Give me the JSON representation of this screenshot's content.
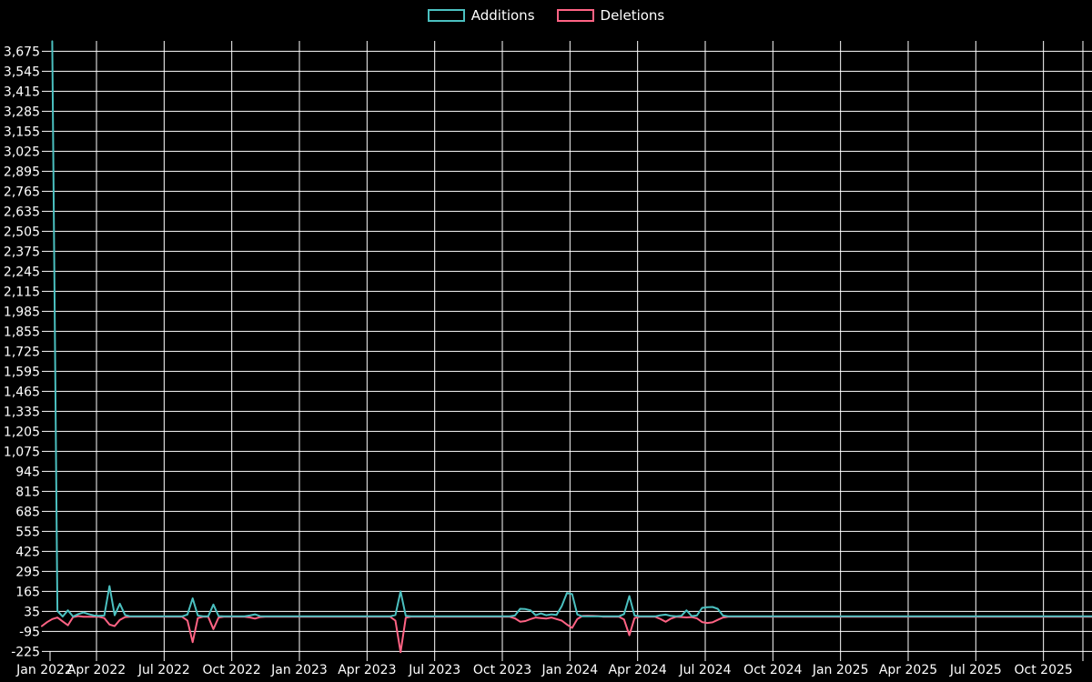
{
  "page": {
    "background_color": "#000000",
    "text_color": "#ffffff",
    "grid_color": "#ffffff"
  },
  "chart_data": {
    "type": "line",
    "title": "",
    "legend_position": "top-center",
    "grid": true,
    "interval": "weekly",
    "x_axis": {
      "start_label": "Jan 2022",
      "end_of_data": "Dec 2025",
      "tick_labels": [
        "Jan 2022",
        "Apr 2022",
        "Jul 2022",
        "Oct 2022",
        "Jan 2023",
        "Apr 2023",
        "Jul 2023",
        "Oct 2023",
        "Jan 2024",
        "Apr 2024",
        "Jul 2024",
        "Oct 2024",
        "Jan 2025",
        "Apr 2025",
        "Jul 2025",
        "Oct 2025"
      ]
    },
    "y_axis": {
      "min": -225,
      "max": 3675,
      "step": 130,
      "tick_labels": [
        "3,675",
        "3,545",
        "3,415",
        "3,285",
        "3,155",
        "3,025",
        "2,895",
        "2,765",
        "2,635",
        "2,505",
        "2,375",
        "2,245",
        "2,115",
        "1,985",
        "1,855",
        "1,725",
        "1,595",
        "1,465",
        "1,335",
        "1,205",
        "1,075",
        "945",
        "815",
        "685",
        "555",
        "425",
        "295",
        "165",
        "35",
        "-95",
        "-225"
      ]
    },
    "series": [
      {
        "name": "Additions",
        "color": "#4bc0c0",
        "values": [
          null,
          null,
          3740,
          38,
          2,
          42,
          2,
          18,
          28,
          18,
          8,
          6,
          8,
          200,
          10,
          85,
          12,
          3,
          3,
          3,
          3,
          3,
          3,
          3,
          3,
          3,
          3,
          3,
          15,
          120,
          8,
          3,
          3,
          80,
          5,
          3,
          3,
          3,
          3,
          3,
          8,
          16,
          4,
          3,
          3,
          3,
          3,
          3,
          3,
          3,
          3,
          3,
          3,
          3,
          3,
          3,
          3,
          3,
          3,
          3,
          3,
          3,
          3,
          3,
          3,
          3,
          3,
          3,
          12,
          165,
          6,
          3,
          3,
          3,
          3,
          3,
          3,
          3,
          3,
          3,
          3,
          3,
          3,
          3,
          3,
          3,
          3,
          3,
          3,
          3,
          3,
          8,
          52,
          50,
          42,
          10,
          22,
          10,
          16,
          12,
          70,
          155,
          148,
          15,
          3,
          3,
          3,
          3,
          3,
          3,
          3,
          3,
          18,
          135,
          8,
          3,
          3,
          3,
          3,
          10,
          14,
          6,
          3,
          6,
          42,
          5,
          8,
          58,
          62,
          64,
          52,
          8,
          3,
          3,
          3,
          3,
          3,
          3,
          3,
          3,
          3,
          3,
          3,
          3,
          3,
          3,
          3,
          3,
          3,
          3,
          3,
          3,
          3,
          3,
          3,
          3,
          3,
          3,
          3,
          3,
          3,
          3,
          3,
          3,
          3,
          3,
          3,
          3,
          3,
          3,
          3,
          3,
          3,
          3,
          3,
          3,
          3,
          3,
          3,
          3,
          3,
          3,
          3,
          3,
          3,
          3,
          3,
          3,
          3,
          3,
          3,
          3,
          3,
          3,
          3,
          3,
          3,
          3,
          3,
          3,
          3,
          3,
          3
        ]
      },
      {
        "name": "Deletions",
        "color": "#ff6384",
        "values": [
          -60,
          -35,
          -15,
          -5,
          -30,
          -55,
          -2,
          5,
          0,
          0,
          0,
          0,
          -8,
          -50,
          -60,
          -20,
          -2,
          0,
          0,
          0,
          0,
          0,
          0,
          0,
          0,
          0,
          0,
          0,
          -25,
          -165,
          -8,
          0,
          0,
          -80,
          -5,
          0,
          0,
          0,
          0,
          0,
          -4,
          -12,
          -2,
          0,
          0,
          0,
          0,
          0,
          0,
          0,
          0,
          0,
          0,
          0,
          0,
          0,
          0,
          0,
          0,
          0,
          0,
          0,
          0,
          0,
          0,
          0,
          0,
          0,
          -25,
          -230,
          -6,
          0,
          0,
          0,
          0,
          0,
          0,
          0,
          0,
          0,
          0,
          0,
          0,
          0,
          0,
          0,
          0,
          0,
          0,
          0,
          0,
          -10,
          -32,
          -28,
          -15,
          -5,
          -8,
          -12,
          -5,
          -15,
          -25,
          -50,
          -72,
          -15,
          6,
          7,
          6,
          5,
          0,
          0,
          0,
          0,
          -18,
          -120,
          -8,
          0,
          0,
          0,
          0,
          -14,
          -32,
          -12,
          0,
          -2,
          -4,
          -2,
          -10,
          -34,
          -40,
          -36,
          -20,
          -5,
          0,
          0,
          0,
          0,
          0,
          0,
          0,
          0,
          0,
          0,
          0,
          0,
          0,
          0,
          0,
          0,
          0,
          0,
          0,
          0,
          0,
          0,
          0,
          0,
          0,
          0,
          0,
          0,
          0,
          0,
          0,
          0,
          0,
          0,
          0,
          0,
          0,
          0,
          0,
          0,
          0,
          0,
          0,
          0,
          0,
          0,
          0,
          0,
          0,
          0,
          0,
          0,
          0,
          0,
          0,
          0,
          0,
          0,
          0,
          0,
          0,
          0,
          0,
          0,
          0,
          0,
          0,
          0,
          0,
          0,
          0
        ]
      }
    ]
  }
}
